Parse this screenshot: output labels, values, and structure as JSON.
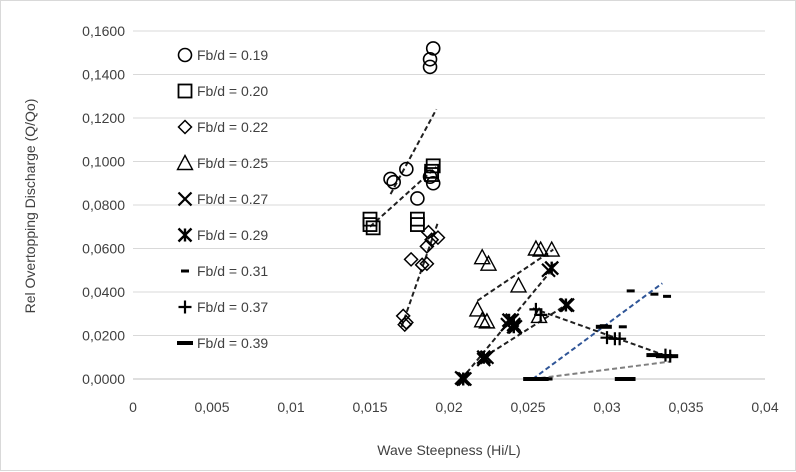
{
  "chart_data": {
    "type": "scatter",
    "title": "",
    "xlabel": "Wave Steepness (Hi/L)",
    "ylabel": "Rel Overtopping Discharge (Q/Qo)",
    "xlim": [
      0,
      0.04
    ],
    "ylim": [
      0,
      0.16
    ],
    "x_ticks": [
      "0",
      "0,005",
      "0,01",
      "0,015",
      "0,02",
      "0,025",
      "0,03",
      "0,035",
      "0,04"
    ],
    "y_ticks": [
      "0,0000",
      "0,0200",
      "0,0400",
      "0,0600",
      "0,0800",
      "0,1000",
      "0,1200",
      "0,1400",
      "0,1600"
    ],
    "grid": "horizontal",
    "legend_position": "left-inside",
    "series": [
      {
        "name": "Fb/d = 0.19",
        "marker": "circle",
        "points": [
          [
            0.019,
            0.152
          ],
          [
            0.0188,
            0.147
          ],
          [
            0.0188,
            0.1435
          ],
          [
            0.0173,
            0.0965
          ],
          [
            0.0163,
            0.092
          ],
          [
            0.0165,
            0.0905
          ],
          [
            0.018,
            0.083
          ],
          [
            0.0188,
            0.093
          ],
          [
            0.019,
            0.09
          ]
        ],
        "trend": {
          "color": "#1f1f1f",
          "from": [
            0.0163,
            0.085
          ],
          "to": [
            0.0192,
            0.124
          ]
        }
      },
      {
        "name": "Fb/d = 0.20",
        "marker": "square",
        "points": [
          [
            0.015,
            0.0735
          ],
          [
            0.015,
            0.071
          ],
          [
            0.0152,
            0.0695
          ],
          [
            0.018,
            0.0735
          ],
          [
            0.018,
            0.071
          ],
          [
            0.019,
            0.098
          ],
          [
            0.0189,
            0.0955
          ],
          [
            0.0189,
            0.094
          ]
        ],
        "trend": {
          "color": "#1f1f1f",
          "from": [
            0.015,
            0.07
          ],
          "to": [
            0.0192,
            0.0975
          ]
        }
      },
      {
        "name": "Fb/d = 0.22",
        "marker": "diamond",
        "points": [
          [
            0.0171,
            0.029
          ],
          [
            0.0173,
            0.026
          ],
          [
            0.0172,
            0.025
          ],
          [
            0.0176,
            0.055
          ],
          [
            0.0183,
            0.0525
          ],
          [
            0.0186,
            0.053
          ],
          [
            0.0186,
            0.061
          ],
          [
            0.0189,
            0.064
          ],
          [
            0.0187,
            0.0675
          ],
          [
            0.0193,
            0.065
          ]
        ],
        "trend": {
          "color": "#1f1f1f",
          "from": [
            0.017,
            0.024
          ],
          "to": [
            0.0193,
            0.072
          ]
        }
      },
      {
        "name": "Fb/d = 0.25",
        "marker": "triangle",
        "points": [
          [
            0.0218,
            0.032
          ],
          [
            0.0221,
            0.027
          ],
          [
            0.0224,
            0.0265
          ],
          [
            0.0221,
            0.056
          ],
          [
            0.0225,
            0.053
          ],
          [
            0.0244,
            0.043
          ],
          [
            0.0255,
            0.06
          ],
          [
            0.0258,
            0.0595
          ],
          [
            0.0265,
            0.0595
          ],
          [
            0.0257,
            0.029
          ]
        ],
        "trend": {
          "color": "#1f1f1f",
          "from": [
            0.0218,
            0.036
          ],
          "to": [
            0.0266,
            0.0595
          ]
        }
      },
      {
        "name": "Fb/d = 0.27",
        "marker": "x",
        "points": [
          [
            0.0208,
            0.0005
          ],
          [
            0.021,
            0.0
          ],
          [
            0.0224,
            0.01
          ],
          [
            0.0222,
            0.009
          ],
          [
            0.0237,
            0.025
          ],
          [
            0.024,
            0.027
          ],
          [
            0.0242,
            0.024
          ],
          [
            0.0263,
            0.05
          ],
          [
            0.0275,
            0.034
          ]
        ],
        "trend": {
          "color": "#1f1f1f",
          "from": [
            0.0208,
            0.0
          ],
          "to": [
            0.0266,
            0.051
          ]
        }
      },
      {
        "name": "Fb/d = 0.29",
        "marker": "asterisk",
        "points": [
          [
            0.0209,
            0.0
          ],
          [
            0.0222,
            0.01
          ],
          [
            0.0238,
            0.027
          ],
          [
            0.0241,
            0.025
          ],
          [
            0.0241,
            0.024
          ],
          [
            0.0265,
            0.051
          ],
          [
            0.0274,
            0.034
          ]
        ],
        "trend": {
          "color": "#1f1f1f",
          "from": [
            0.0222,
            0.01
          ],
          "to": [
            0.0274,
            0.034
          ]
        }
      },
      {
        "name": "Fb/d = 0.31",
        "marker": "dash",
        "points": [
          [
            0.0255,
            0.0
          ],
          [
            0.0263,
            0.0
          ],
          [
            0.0298,
            0.0245
          ],
          [
            0.031,
            0.024
          ],
          [
            0.0315,
            0.0405
          ],
          [
            0.033,
            0.039
          ],
          [
            0.0338,
            0.038
          ]
        ],
        "trend": {
          "color": "#2f5597",
          "from": [
            0.0253,
            0.0
          ],
          "to": [
            0.0335,
            0.044
          ]
        }
      },
      {
        "name": "Fb/d = 0.37",
        "marker": "plus",
        "points": [
          [
            0.0255,
            0.032
          ],
          [
            0.0258,
            0.0295
          ],
          [
            0.03,
            0.019
          ],
          [
            0.0305,
            0.0185
          ],
          [
            0.0308,
            0.0185
          ],
          [
            0.0337,
            0.011
          ],
          [
            0.034,
            0.0105
          ]
        ],
        "trend": {
          "color": "#1f1f1f",
          "from": [
            0.0253,
            0.0325
          ],
          "to": [
            0.034,
            0.01
          ]
        }
      },
      {
        "name": "Fb/d = 0.39",
        "marker": "bar",
        "points": [
          [
            0.0252,
            0.0
          ],
          [
            0.0258,
            0.0
          ],
          [
            0.0298,
            0.024
          ],
          [
            0.031,
            0.0
          ],
          [
            0.0313,
            0.0
          ],
          [
            0.033,
            0.011
          ],
          [
            0.0336,
            0.0105
          ],
          [
            0.034,
            0.0105
          ]
        ],
        "trend": {
          "color": "#7f7f7f",
          "from": [
            0.0253,
            0.0
          ],
          "to": [
            0.034,
            0.008
          ]
        }
      }
    ]
  }
}
